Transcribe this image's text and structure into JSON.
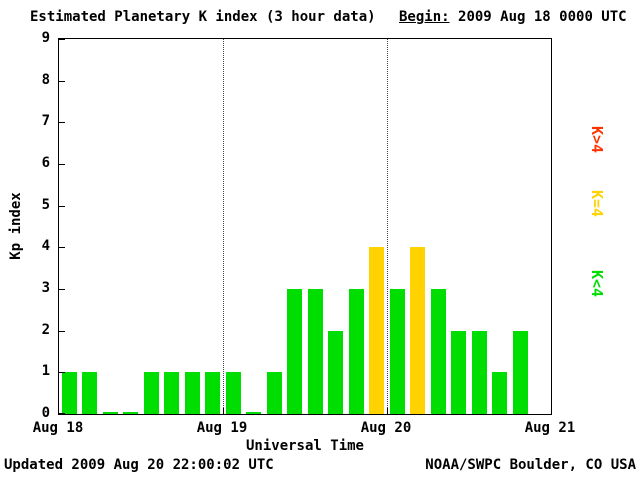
{
  "header": {
    "title": "Estimated Planetary K index (3 hour data)",
    "begin_label": "Begin:",
    "begin_value": "2009 Aug 18 0000 UTC"
  },
  "footer": {
    "updated": "Updated 2009 Aug 20 22:00:02 UTC",
    "source": "NOAA/SWPC Boulder, CO USA"
  },
  "chart_data": {
    "type": "bar",
    "title": "Estimated Planetary K index (3 hour data)",
    "xlabel": "Universal Time",
    "ylabel": "Kp index",
    "ylim": [
      0,
      9
    ],
    "yticks": [
      0,
      1,
      2,
      3,
      4,
      5,
      6,
      7,
      8,
      9
    ],
    "x_tick_labels": [
      "Aug 18",
      "Aug 19",
      "Aug 20",
      "Aug 21"
    ],
    "x_tick_slots": [
      0,
      8,
      16,
      24
    ],
    "bar_interval_hours": 3,
    "slots_per_day": 8,
    "total_slots": 24,
    "grid_vlines_at_slots": [
      8,
      16
    ],
    "days": [
      {
        "date": "Aug 18",
        "values": [
          1,
          1,
          0,
          0,
          1,
          1,
          1,
          1
        ]
      },
      {
        "date": "Aug 19",
        "values": [
          1,
          0,
          1,
          3,
          3,
          2,
          3,
          4
        ]
      },
      {
        "date": "Aug 20",
        "values": [
          3,
          4,
          3,
          2,
          2,
          1,
          2
        ]
      }
    ],
    "colors": {
      "low": "#00dd00",
      "mid": "#ffd200",
      "high": "#ff3300"
    },
    "color_rule": "green K<4, yellow K=4, red K>4",
    "legend": [
      {
        "label": "K>4",
        "color": "#ff3300"
      },
      {
        "label": "K=4",
        "color": "#ffd200"
      },
      {
        "label": "K<4",
        "color": "#00dd00"
      }
    ],
    "legend_position": "right"
  }
}
